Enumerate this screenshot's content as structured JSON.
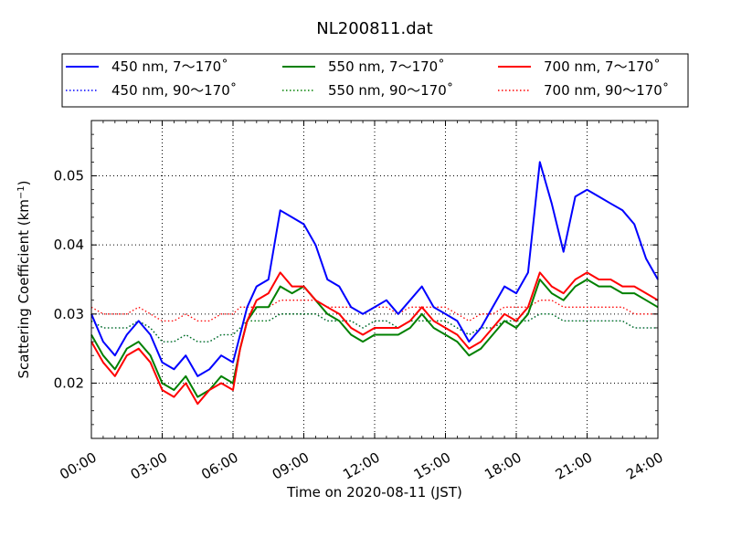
{
  "chart_data": {
    "type": "line",
    "title": "NL200811.dat",
    "xlabel": "Time on 2020-08-11 (JST)",
    "ylabel": "Scattering Coefficient (km",
    "ylabel_sup": "−1",
    "ylabel_close": ")",
    "xlim": [
      0,
      24
    ],
    "ylim": [
      0.012,
      0.058
    ],
    "x_ticks": [
      0,
      3,
      6,
      9,
      12,
      15,
      18,
      21,
      24
    ],
    "x_tick_labels": [
      "00:00",
      "03:00",
      "06:00",
      "09:00",
      "12:00",
      "15:00",
      "18:00",
      "21:00",
      "24:00"
    ],
    "y_ticks": [
      0.02,
      0.03,
      0.04,
      0.05
    ],
    "y_tick_labels": [
      "0.02",
      "0.03",
      "0.04",
      "0.05"
    ],
    "grid": true,
    "legend_position": "top",
    "series": [
      {
        "name": "450 nm, 7～170˚",
        "color": "#0000ff",
        "style": "solid",
        "width": 2,
        "x": [
          0,
          0.5,
          1,
          1.5,
          2,
          2.5,
          3,
          3.5,
          4,
          4.5,
          5,
          5.5,
          6,
          6.3,
          6.6,
          7,
          7.5,
          8,
          8.5,
          9,
          9.5,
          10,
          10.5,
          11,
          11.5,
          12,
          12.5,
          13,
          13.5,
          14,
          14.5,
          15,
          15.5,
          16,
          16.5,
          17,
          17.5,
          18,
          18.5,
          19,
          19.5,
          20,
          20.5,
          21,
          21.5,
          22,
          22.5,
          23,
          23.5,
          24
        ],
        "y": [
          0.03,
          0.026,
          0.024,
          0.027,
          0.029,
          0.027,
          0.023,
          0.022,
          0.024,
          0.021,
          0.022,
          0.024,
          0.023,
          0.027,
          0.031,
          0.034,
          0.035,
          0.045,
          0.044,
          0.043,
          0.04,
          0.035,
          0.034,
          0.031,
          0.03,
          0.031,
          0.032,
          0.03,
          0.032,
          0.034,
          0.031,
          0.03,
          0.029,
          0.026,
          0.028,
          0.031,
          0.034,
          0.033,
          0.036,
          0.052,
          0.046,
          0.039,
          0.047,
          0.048,
          0.047,
          0.046,
          0.045,
          0.043,
          0.038,
          0.035
        ]
      },
      {
        "name": "450 nm, 90～170˚",
        "color": "#0000ff",
        "style": "dotted",
        "width": 1.3,
        "x": [
          0,
          0.5,
          1,
          1.5,
          2,
          2.5,
          3,
          3.5,
          4,
          4.5,
          5,
          5.5,
          6,
          6.3,
          6.6,
          7,
          7.5,
          8,
          8.5,
          9,
          9.5,
          10,
          10.5,
          11,
          11.5,
          12,
          12.5,
          13,
          13.5,
          14,
          14.5,
          15,
          15.5,
          16,
          16.5,
          17,
          17.5,
          18,
          18.5,
          19,
          19.5,
          20,
          20.5,
          21,
          21.5,
          22,
          22.5,
          23,
          23.5,
          24
        ],
        "y": [
          0.029,
          0.028,
          0.028,
          0.028,
          0.029,
          0.028,
          0.026,
          0.026,
          0.027,
          0.026,
          0.026,
          0.027,
          0.027,
          0.028,
          0.029,
          0.029,
          0.029,
          0.03,
          0.03,
          0.03,
          0.03,
          0.029,
          0.029,
          0.029,
          0.028,
          0.029,
          0.029,
          0.028,
          0.029,
          0.029,
          0.029,
          0.029,
          0.028,
          0.027,
          0.028,
          0.028,
          0.029,
          0.029,
          0.029,
          0.03,
          0.03,
          0.029,
          0.029,
          0.029,
          0.029,
          0.029,
          0.029,
          0.028,
          0.028,
          0.028
        ]
      },
      {
        "name": "550 nm, 7～170˚",
        "color": "#008000",
        "style": "solid",
        "width": 2,
        "x": [
          0,
          0.5,
          1,
          1.5,
          2,
          2.5,
          3,
          3.5,
          4,
          4.5,
          5,
          5.5,
          6,
          6.3,
          6.6,
          7,
          7.5,
          8,
          8.5,
          9,
          9.5,
          10,
          10.5,
          11,
          11.5,
          12,
          12.5,
          13,
          13.5,
          14,
          14.5,
          15,
          15.5,
          16,
          16.5,
          17,
          17.5,
          18,
          18.5,
          19,
          19.5,
          20,
          20.5,
          21,
          21.5,
          22,
          22.5,
          23,
          23.5,
          24
        ],
        "y": [
          0.027,
          0.024,
          0.022,
          0.025,
          0.026,
          0.024,
          0.02,
          0.019,
          0.021,
          0.018,
          0.019,
          0.021,
          0.02,
          0.025,
          0.029,
          0.031,
          0.031,
          0.034,
          0.033,
          0.034,
          0.032,
          0.03,
          0.029,
          0.027,
          0.026,
          0.027,
          0.027,
          0.027,
          0.028,
          0.03,
          0.028,
          0.027,
          0.026,
          0.024,
          0.025,
          0.027,
          0.029,
          0.028,
          0.03,
          0.035,
          0.033,
          0.032,
          0.034,
          0.035,
          0.034,
          0.034,
          0.033,
          0.033,
          0.032,
          0.031
        ]
      },
      {
        "name": "550 nm, 90～170˚",
        "color": "#008000",
        "style": "dotted",
        "width": 1.3,
        "x": [
          0,
          0.5,
          1,
          1.5,
          2,
          2.5,
          3,
          3.5,
          4,
          4.5,
          5,
          5.5,
          6,
          6.3,
          6.6,
          7,
          7.5,
          8,
          8.5,
          9,
          9.5,
          10,
          10.5,
          11,
          11.5,
          12,
          12.5,
          13,
          13.5,
          14,
          14.5,
          15,
          15.5,
          16,
          16.5,
          17,
          17.5,
          18,
          18.5,
          19,
          19.5,
          20,
          20.5,
          21,
          21.5,
          22,
          22.5,
          23,
          23.5,
          24
        ],
        "y": [
          0.029,
          0.028,
          0.028,
          0.028,
          0.029,
          0.028,
          0.026,
          0.026,
          0.027,
          0.026,
          0.026,
          0.027,
          0.027,
          0.028,
          0.029,
          0.029,
          0.029,
          0.03,
          0.03,
          0.03,
          0.03,
          0.029,
          0.029,
          0.029,
          0.028,
          0.029,
          0.029,
          0.028,
          0.029,
          0.029,
          0.029,
          0.029,
          0.028,
          0.027,
          0.028,
          0.028,
          0.029,
          0.029,
          0.029,
          0.03,
          0.03,
          0.029,
          0.029,
          0.029,
          0.029,
          0.029,
          0.029,
          0.028,
          0.028,
          0.028
        ]
      },
      {
        "name": "700 nm, 7～170˚",
        "color": "#ff0000",
        "style": "solid",
        "width": 2,
        "x": [
          0,
          0.5,
          1,
          1.5,
          2,
          2.5,
          3,
          3.5,
          4,
          4.5,
          5,
          5.5,
          6,
          6.3,
          6.6,
          7,
          7.5,
          8,
          8.5,
          9,
          9.5,
          10,
          10.5,
          11,
          11.5,
          12,
          12.5,
          13,
          13.5,
          14,
          14.5,
          15,
          15.5,
          16,
          16.5,
          17,
          17.5,
          18,
          18.5,
          19,
          19.5,
          20,
          20.5,
          21,
          21.5,
          22,
          22.5,
          23,
          23.5,
          24
        ],
        "y": [
          0.026,
          0.023,
          0.021,
          0.024,
          0.025,
          0.023,
          0.019,
          0.018,
          0.02,
          0.017,
          0.019,
          0.02,
          0.019,
          0.025,
          0.029,
          0.032,
          0.033,
          0.036,
          0.034,
          0.034,
          0.032,
          0.031,
          0.03,
          0.028,
          0.027,
          0.028,
          0.028,
          0.028,
          0.029,
          0.031,
          0.029,
          0.028,
          0.027,
          0.025,
          0.026,
          0.028,
          0.03,
          0.029,
          0.031,
          0.036,
          0.034,
          0.033,
          0.035,
          0.036,
          0.035,
          0.035,
          0.034,
          0.034,
          0.033,
          0.032
        ]
      },
      {
        "name": "700 nm, 90～170˚",
        "color": "#ff0000",
        "style": "dotted",
        "width": 1.3,
        "x": [
          0,
          0.5,
          1,
          1.5,
          2,
          2.5,
          3,
          3.5,
          4,
          4.5,
          5,
          5.5,
          6,
          6.3,
          6.6,
          7,
          7.5,
          8,
          8.5,
          9,
          9.5,
          10,
          10.5,
          11,
          11.5,
          12,
          12.5,
          13,
          13.5,
          14,
          14.5,
          15,
          15.5,
          16,
          16.5,
          17,
          17.5,
          18,
          18.5,
          19,
          19.5,
          20,
          20.5,
          21,
          21.5,
          22,
          22.5,
          23,
          23.5,
          24
        ],
        "y": [
          0.031,
          0.03,
          0.03,
          0.03,
          0.031,
          0.03,
          0.029,
          0.029,
          0.03,
          0.029,
          0.029,
          0.03,
          0.03,
          0.031,
          0.031,
          0.031,
          0.031,
          0.032,
          0.032,
          0.032,
          0.032,
          0.031,
          0.031,
          0.031,
          0.03,
          0.031,
          0.031,
          0.03,
          0.031,
          0.031,
          0.031,
          0.031,
          0.03,
          0.029,
          0.03,
          0.03,
          0.031,
          0.031,
          0.031,
          0.032,
          0.032,
          0.031,
          0.031,
          0.031,
          0.031,
          0.031,
          0.031,
          0.03,
          0.03,
          0.03
        ]
      }
    ]
  }
}
